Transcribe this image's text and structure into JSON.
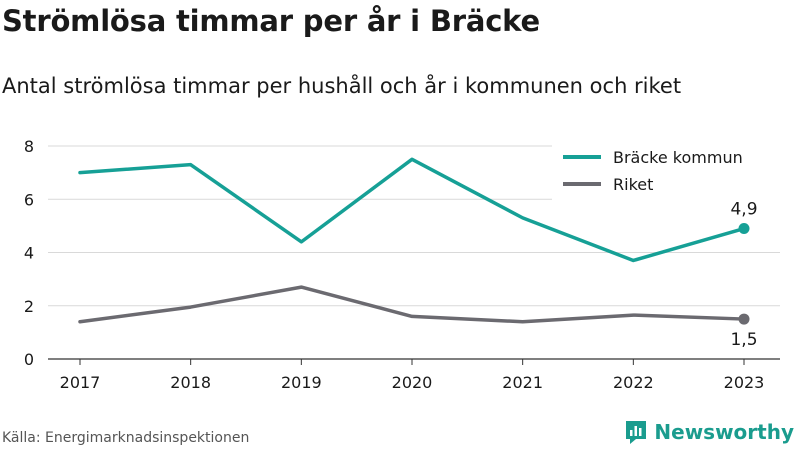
{
  "title": "Strömlösa timmar per år i Bräcke",
  "subtitle": "Antal strömlösa timmar per hushåll och år i kommunen och riket",
  "source": "Källa: Energimarknadsinspektionen",
  "brand": {
    "name": "Newsworthy",
    "icon": "newsworthy-logo-icon",
    "color": "#1a9c8e"
  },
  "chart_data": {
    "type": "line",
    "x": [
      "2017",
      "2018",
      "2019",
      "2020",
      "2021",
      "2022",
      "2023"
    ],
    "series": [
      {
        "name": "Bräcke kommun",
        "color": "#16a096",
        "values": [
          7.0,
          7.3,
          4.4,
          7.5,
          5.3,
          3.7,
          4.9
        ]
      },
      {
        "name": "Riket",
        "color": "#6b6a70",
        "values": [
          1.4,
          1.95,
          2.7,
          1.6,
          1.4,
          1.65,
          1.5
        ]
      }
    ],
    "end_labels": [
      "4,9",
      "1,5"
    ],
    "yticks": [
      "0",
      "2",
      "4",
      "6",
      "8"
    ],
    "ylim": [
      0,
      8
    ],
    "grid": true,
    "legend": "top-right"
  }
}
